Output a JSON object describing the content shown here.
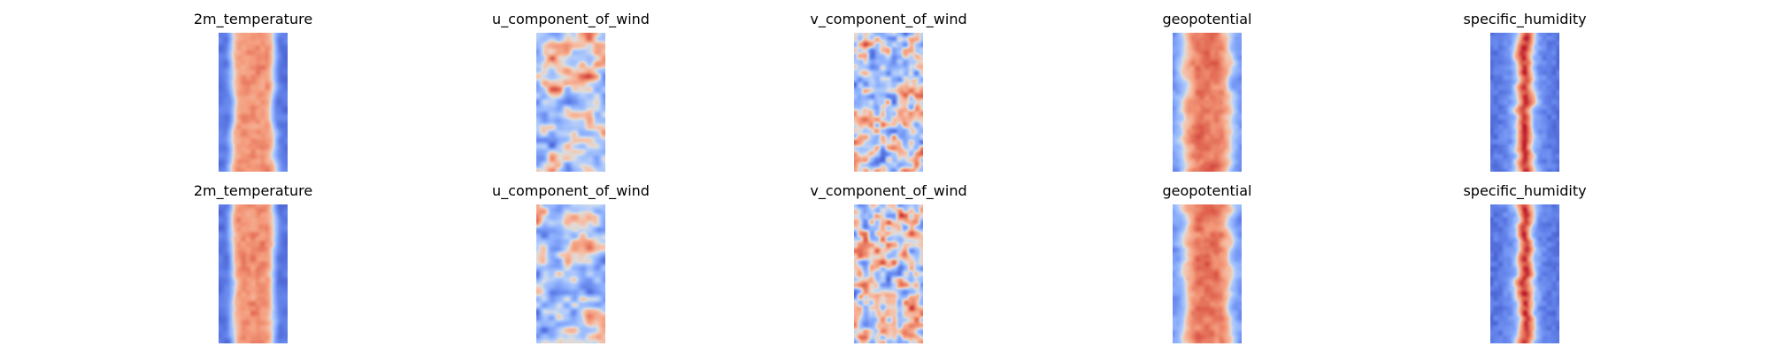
{
  "chart_data": {
    "type": "heatmap",
    "colormap": "coolwarm",
    "axes_visible": false,
    "rows": [
      {
        "panels": [
          {
            "title": "2m_temperature",
            "pattern": "temperature",
            "seed": 11
          },
          {
            "title": "u_component_of_wind",
            "pattern": "wind_u",
            "seed": 12
          },
          {
            "title": "v_component_of_wind",
            "pattern": "wind_v",
            "seed": 13
          },
          {
            "title": "geopotential",
            "pattern": "geopotential",
            "seed": 14
          },
          {
            "title": "specific_humidity",
            "pattern": "humidity",
            "seed": 15
          }
        ]
      },
      {
        "panels": [
          {
            "title": "2m_temperature",
            "pattern": "temperature",
            "seed": 21
          },
          {
            "title": "u_component_of_wind",
            "pattern": "wind_u",
            "seed": 22
          },
          {
            "title": "v_component_of_wind",
            "pattern": "wind_v",
            "seed": 23
          },
          {
            "title": "geopotential",
            "pattern": "geopotential",
            "seed": 24
          },
          {
            "title": "specific_humidity",
            "pattern": "humidity",
            "seed": 25
          }
        ]
      }
    ]
  }
}
